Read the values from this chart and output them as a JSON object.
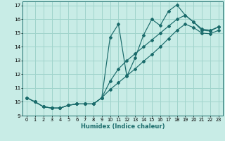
{
  "xlabel": "Humidex (Indice chaleur)",
  "bg_color": "#c8ece6",
  "grid_color": "#a0d4cc",
  "line_color": "#1a6b6b",
  "xlim": [
    -0.5,
    23.5
  ],
  "ylim": [
    9,
    17.3
  ],
  "xticks": [
    0,
    1,
    2,
    3,
    4,
    5,
    6,
    7,
    8,
    9,
    10,
    11,
    12,
    13,
    14,
    15,
    16,
    17,
    18,
    19,
    20,
    21,
    22,
    23
  ],
  "yticks": [
    9,
    10,
    11,
    12,
    13,
    14,
    15,
    16,
    17
  ],
  "series1_x": [
    0,
    1,
    2,
    3,
    4,
    5,
    6,
    7,
    8,
    9,
    10,
    11,
    12,
    13,
    14,
    15,
    16,
    17,
    18,
    19,
    20,
    21,
    22,
    23
  ],
  "series1_y": [
    10.3,
    10.0,
    9.65,
    9.55,
    9.55,
    9.75,
    9.85,
    9.85,
    9.85,
    10.3,
    14.7,
    15.65,
    11.85,
    13.2,
    14.85,
    16.0,
    15.55,
    16.6,
    17.05,
    16.3,
    15.8,
    15.3,
    15.2,
    15.45
  ],
  "series2_x": [
    0,
    1,
    2,
    3,
    4,
    5,
    6,
    7,
    8,
    9,
    10,
    11,
    12,
    13,
    14,
    15,
    16,
    17,
    18,
    19,
    20,
    21,
    22,
    23
  ],
  "series2_y": [
    10.3,
    10.0,
    9.65,
    9.55,
    9.55,
    9.75,
    9.85,
    9.85,
    9.85,
    10.3,
    11.5,
    12.4,
    13.0,
    13.5,
    14.0,
    14.5,
    15.0,
    15.5,
    16.0,
    16.3,
    15.8,
    15.2,
    15.15,
    15.45
  ],
  "series3_x": [
    0,
    1,
    2,
    3,
    4,
    5,
    6,
    7,
    8,
    9,
    10,
    11,
    12,
    13,
    14,
    15,
    16,
    17,
    18,
    19,
    20,
    21,
    22,
    23
  ],
  "series3_y": [
    10.3,
    10.0,
    9.65,
    9.55,
    9.55,
    9.75,
    9.85,
    9.85,
    9.85,
    10.3,
    10.9,
    11.4,
    11.9,
    12.4,
    12.95,
    13.45,
    14.0,
    14.6,
    15.2,
    15.65,
    15.4,
    15.0,
    14.95,
    15.2
  ]
}
